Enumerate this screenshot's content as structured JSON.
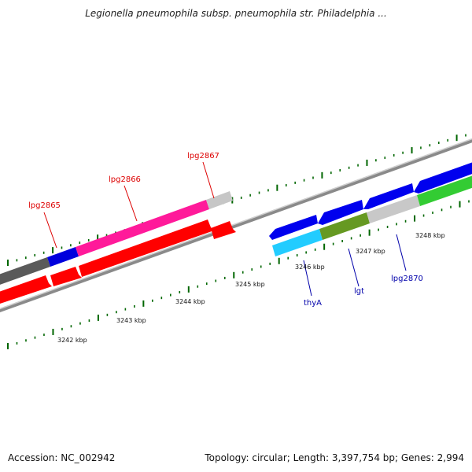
{
  "title": "Legionella pneumophila subsp. pneumophila str. Philadelphia ...",
  "footer": {
    "accession": "Accession: NC_002942",
    "summary": "Topology: circular; Length: 3,397,754 bp; Genes: 2,994"
  },
  "genes": [
    {
      "label": "lpg2865",
      "label_color": "#dd0000"
    },
    {
      "label": "lpg2866",
      "label_color": "#dd0000"
    },
    {
      "label": "lpg2867",
      "label_color": "#dd0000"
    },
    {
      "label": "thyA",
      "label_color": "#0000aa"
    },
    {
      "label": "lgt",
      "label_color": "#0000aa"
    },
    {
      "label": "lpg2870",
      "label_color": "#0000aa"
    }
  ],
  "scale_labels": [
    "3242 kbp",
    "3243 kbp",
    "3244 kbp",
    "3245 kbp",
    "3246 kbp",
    "3247 kbp",
    "3248 kbp"
  ],
  "colors": {
    "backbone": "#808080",
    "tick": "#006600",
    "forward_feature": "#ff1a9a",
    "reverse_feature": "#ff0000",
    "blue_feature": "#0000ee",
    "cyan_feature": "#22ccff",
    "olive_feature": "#669922",
    "green_feature": "#33cc33",
    "gray_feature": "#c8c8c8"
  }
}
